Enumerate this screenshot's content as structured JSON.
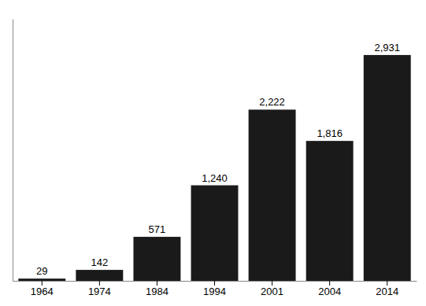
{
  "chart_data": {
    "type": "bar",
    "categories": [
      "1964",
      "1974",
      "1984",
      "1994",
      "2001",
      "2004",
      "2014"
    ],
    "values": [
      29,
      142,
      571,
      1240,
      2222,
      1816,
      2931
    ],
    "value_labels": [
      "29",
      "142",
      "571",
      "1,240",
      "2,222",
      "1,816",
      "2,931"
    ],
    "color": "#1a1a1a",
    "ylim": [
      0,
      3400
    ],
    "grid": false,
    "data_labels": true,
    "tick_labels": "x"
  }
}
